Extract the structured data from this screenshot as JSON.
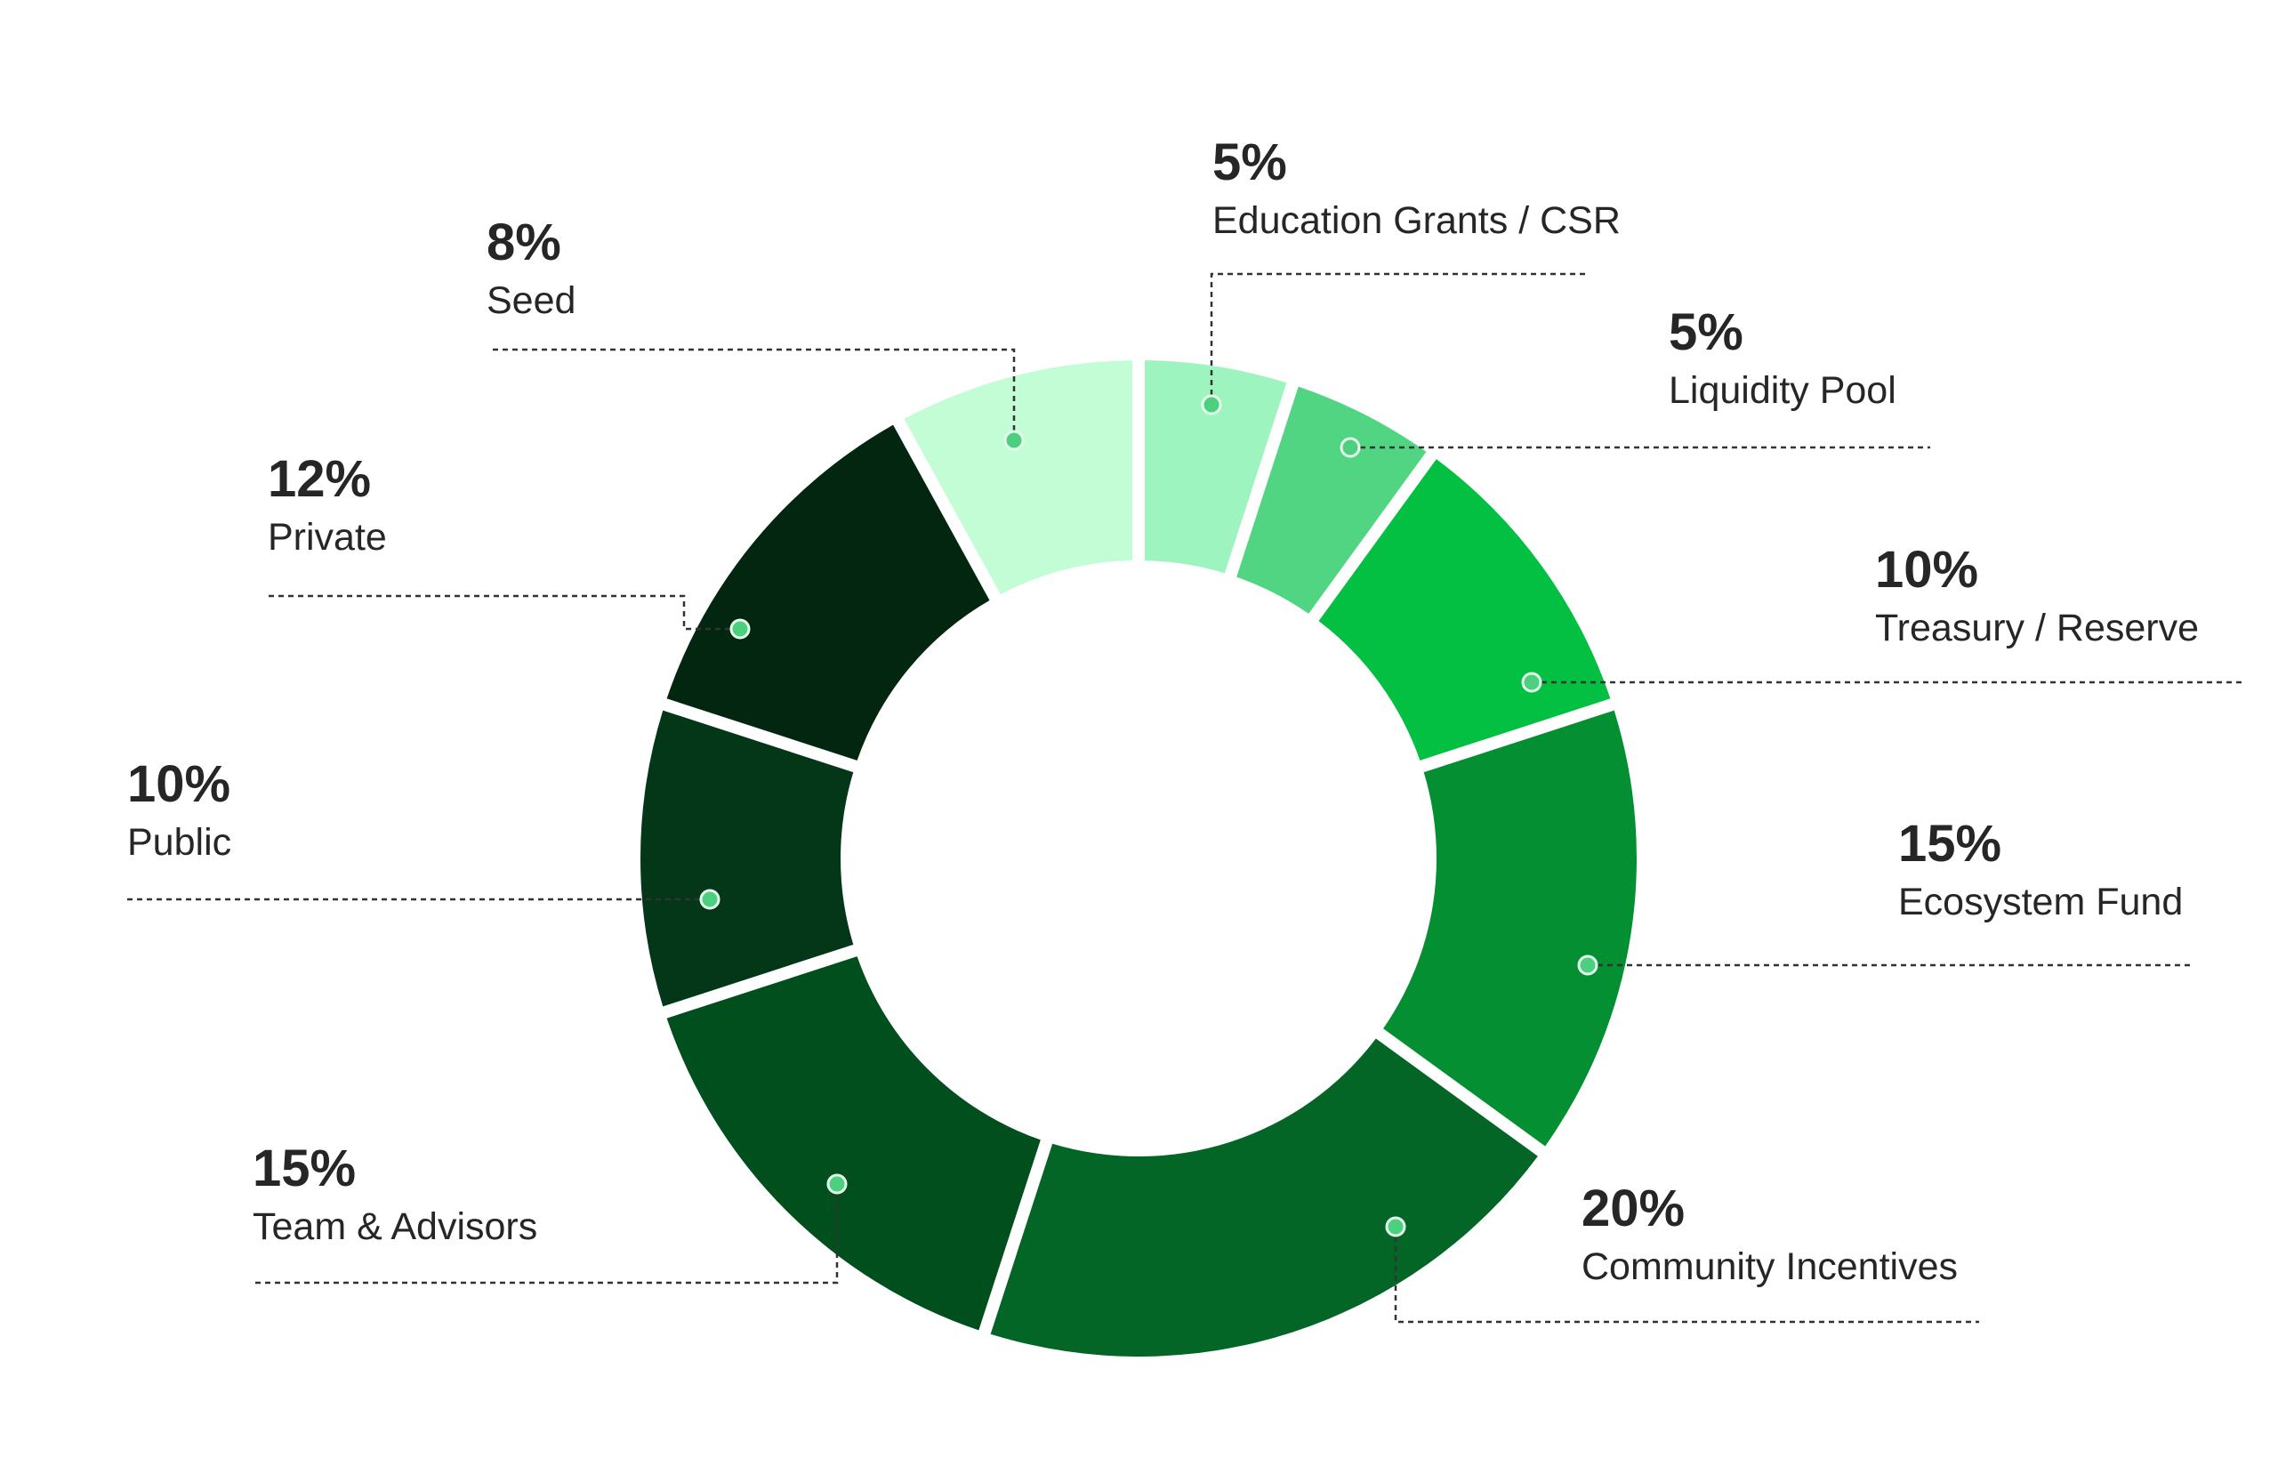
{
  "chart_data": {
    "type": "pie",
    "variant": "donut",
    "slices": [
      {
        "label": "Education Grants / CSR",
        "value": 5,
        "display": "5%",
        "color": "#9EF4BE"
      },
      {
        "label": "Liquidity Pool",
        "value": 5,
        "display": "5%",
        "color": "#52D583"
      },
      {
        "label": "Treasury / Reserve",
        "value": 10,
        "display": "10%",
        "color": "#03C043"
      },
      {
        "label": "Ecosystem Fund",
        "value": 15,
        "display": "15%",
        "color": "#038F32"
      },
      {
        "label": "Community Incentives",
        "value": 20,
        "display": "20%",
        "color": "#036627"
      },
      {
        "label": "Team & Advisors",
        "value": 15,
        "display": "15%",
        "color": "#024F1E"
      },
      {
        "label": "Public",
        "value": 10,
        "display": "10%",
        "color": "#033717"
      },
      {
        "label": "Private",
        "value": 12,
        "display": "12%",
        "color": "#022610"
      },
      {
        "label": "Seed",
        "value": 8,
        "display": "8%",
        "color": "#C3FDD5"
      }
    ],
    "legend": "none",
    "title": ""
  },
  "colors": {
    "text": "#262626",
    "leader": "#333333",
    "background": "#FFFFFF"
  }
}
